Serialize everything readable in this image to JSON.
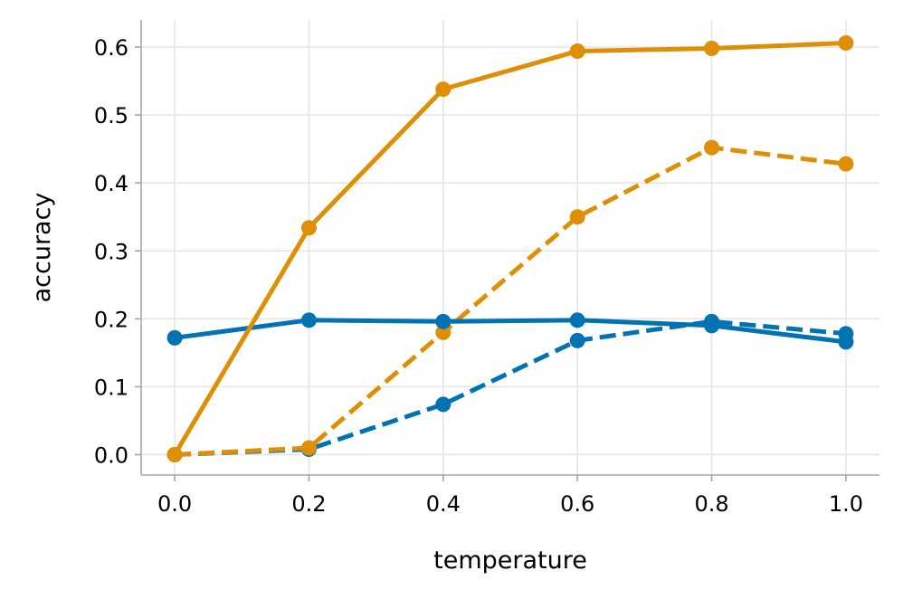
{
  "chart_data": {
    "type": "line",
    "title": "",
    "xlabel": "temperature",
    "ylabel": "accuracy",
    "xlim": [
      -0.05,
      1.05
    ],
    "ylim": [
      -0.03,
      0.64
    ],
    "x": [
      0.0,
      0.2,
      0.4,
      0.6,
      0.8,
      1.0
    ],
    "xticks": [
      0.0,
      0.2,
      0.4,
      0.6,
      0.8,
      1.0
    ],
    "xtick_labels": [
      "0.0",
      "0.2",
      "0.4",
      "0.6",
      "0.8",
      "1.0"
    ],
    "yticks": [
      0.0,
      0.1,
      0.2,
      0.3,
      0.4,
      0.5,
      0.6
    ],
    "ytick_labels": [
      "0.0",
      "0.1",
      "0.2",
      "0.3",
      "0.4",
      "0.5",
      "0.6"
    ],
    "grid": true,
    "legend": false,
    "series": [
      {
        "name": "blue-dashed",
        "color": "#0173b2",
        "dashed": true,
        "values": [
          0.0,
          0.008,
          0.074,
          0.168,
          0.196,
          0.178
        ]
      },
      {
        "name": "orange-dashed",
        "color": "#de8f05",
        "dashed": true,
        "values": [
          0.0,
          0.01,
          0.18,
          0.35,
          0.452,
          0.428
        ]
      },
      {
        "name": "blue-solid",
        "color": "#0173b2",
        "dashed": false,
        "values": [
          0.172,
          0.198,
          0.196,
          0.198,
          0.19,
          0.166
        ]
      },
      {
        "name": "orange-solid",
        "color": "#de8f05",
        "dashed": false,
        "values": [
          0.0,
          0.334,
          0.538,
          0.594,
          0.598,
          0.606
        ]
      }
    ]
  }
}
